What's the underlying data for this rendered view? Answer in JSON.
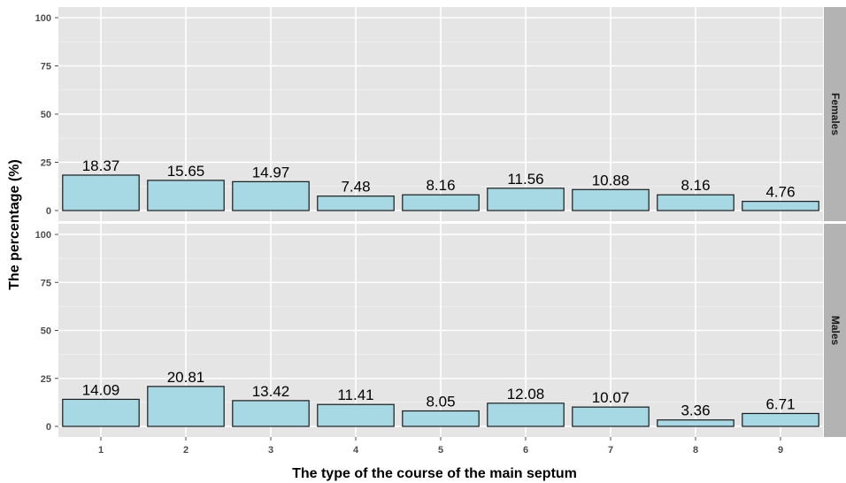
{
  "chart_data": {
    "type": "bar",
    "xlabel": "The type of the course of the main septum",
    "ylabel": "The percentage (%)",
    "categories": [
      "1",
      "2",
      "3",
      "4",
      "5",
      "6",
      "7",
      "8",
      "9"
    ],
    "ylim": [
      0,
      100
    ],
    "yticks": [
      "0",
      "25",
      "50",
      "75",
      "100"
    ],
    "grid": true,
    "bar_color": "#a6d9e3",
    "panels": [
      {
        "facet": "Females",
        "values": [
          18.37,
          15.65,
          14.97,
          7.48,
          8.16,
          11.56,
          10.88,
          8.16,
          4.76
        ],
        "labels": [
          "18.37",
          "15.65",
          "14.97",
          "7.48",
          "8.16",
          "11.56",
          "10.88",
          "8.16",
          "4.76"
        ]
      },
      {
        "facet": "Males",
        "values": [
          14.09,
          20.81,
          13.42,
          11.41,
          8.05,
          12.08,
          10.07,
          3.36,
          6.71
        ],
        "labels": [
          "14.09",
          "20.81",
          "13.42",
          "11.41",
          "8.05",
          "12.08",
          "10.07",
          "3.36",
          "6.71"
        ]
      }
    ]
  }
}
